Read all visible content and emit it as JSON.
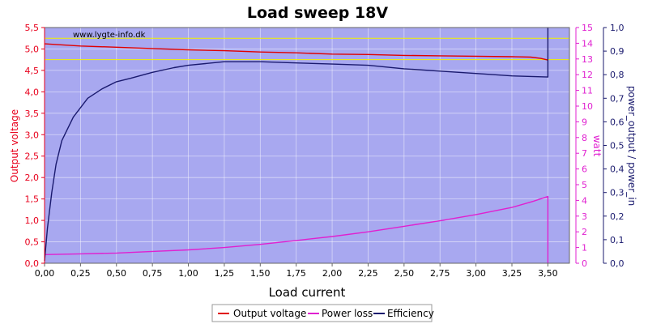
{
  "chart_data": {
    "type": "line",
    "title": "Load sweep 18V",
    "watermark": "www.lygte-info.dk",
    "xlabel": "Load current",
    "xlim": [
      0,
      3.65
    ],
    "xticks": [
      "0,00",
      "0,25",
      "0,50",
      "0,75",
      "1,00",
      "1,25",
      "1,50",
      "1,75",
      "2,00",
      "2,25",
      "2,50",
      "2,75",
      "3,00",
      "3,25",
      "3,50"
    ],
    "y_left": {
      "label": "Output voltage",
      "ylim": [
        0,
        5.5
      ],
      "ticks": [
        "0,0",
        "0,5",
        "1,0",
        "1,5",
        "2,0",
        "2,5",
        "3,0",
        "3,5",
        "4,0",
        "4,5",
        "5,0",
        "5,5"
      ],
      "color": "#e8001c"
    },
    "y_right1": {
      "label": "watt",
      "ylim": [
        0,
        15
      ],
      "ticks": [
        "0",
        "1",
        "2",
        "3",
        "4",
        "5",
        "6",
        "7",
        "8",
        "9",
        "10",
        "11",
        "12",
        "13",
        "14",
        "15"
      ],
      "color": "#e020d0"
    },
    "y_right2": {
      "label": "power_output / power_in",
      "ylim": [
        0,
        1.0
      ],
      "ticks": [
        "0,0",
        "0,1",
        "0,2",
        "0,3",
        "0,4",
        "0,5",
        "0,6",
        "0,7",
        "0,8",
        "0,9",
        "1,0"
      ],
      "color": "#1a1a6e"
    },
    "reference_lines": [
      5.25,
      4.75
    ],
    "grid": true,
    "legend_position": "bottom",
    "series": [
      {
        "name": "Output voltage",
        "axis": "left",
        "color": "#e00000",
        "points": [
          [
            0,
            5.12
          ],
          [
            0.1,
            5.1
          ],
          [
            0.25,
            5.07
          ],
          [
            0.5,
            5.04
          ],
          [
            0.75,
            5.01
          ],
          [
            1.0,
            4.98
          ],
          [
            1.25,
            4.96
          ],
          [
            1.5,
            4.93
          ],
          [
            1.75,
            4.91
          ],
          [
            2.0,
            4.88
          ],
          [
            2.25,
            4.87
          ],
          [
            2.5,
            4.85
          ],
          [
            2.75,
            4.84
          ],
          [
            3.0,
            4.83
          ],
          [
            3.25,
            4.82
          ],
          [
            3.38,
            4.81
          ],
          [
            3.45,
            4.78
          ],
          [
            3.49,
            4.75
          ],
          [
            3.5,
            4.74
          ]
        ]
      },
      {
        "name": "Power loss",
        "axis": "right1",
        "color": "#e020d0",
        "points": [
          [
            0,
            0.55
          ],
          [
            0.25,
            0.6
          ],
          [
            0.5,
            0.65
          ],
          [
            0.75,
            0.75
          ],
          [
            1.0,
            0.85
          ],
          [
            1.25,
            1.0
          ],
          [
            1.5,
            1.2
          ],
          [
            1.75,
            1.45
          ],
          [
            2.0,
            1.7
          ],
          [
            2.25,
            2.0
          ],
          [
            2.5,
            2.35
          ],
          [
            2.75,
            2.7
          ],
          [
            3.0,
            3.1
          ],
          [
            3.25,
            3.55
          ],
          [
            3.4,
            3.95
          ],
          [
            3.5,
            4.25
          ],
          [
            3.5,
            0
          ]
        ]
      },
      {
        "name": "Efficiency",
        "axis": "right2",
        "color": "#1a1a6e",
        "points": [
          [
            0,
            0.01
          ],
          [
            0.02,
            0.15
          ],
          [
            0.05,
            0.3
          ],
          [
            0.08,
            0.42
          ],
          [
            0.12,
            0.52
          ],
          [
            0.2,
            0.62
          ],
          [
            0.3,
            0.7
          ],
          [
            0.4,
            0.74
          ],
          [
            0.5,
            0.77
          ],
          [
            0.6,
            0.785
          ],
          [
            0.75,
            0.81
          ],
          [
            0.9,
            0.83
          ],
          [
            1.0,
            0.84
          ],
          [
            1.25,
            0.855
          ],
          [
            1.5,
            0.855
          ],
          [
            1.75,
            0.85
          ],
          [
            2.0,
            0.845
          ],
          [
            2.25,
            0.84
          ],
          [
            2.5,
            0.825
          ],
          [
            2.75,
            0.815
          ],
          [
            3.0,
            0.805
          ],
          [
            3.25,
            0.795
          ],
          [
            3.5,
            0.79
          ],
          [
            3.5,
            1.0
          ]
        ]
      }
    ]
  }
}
